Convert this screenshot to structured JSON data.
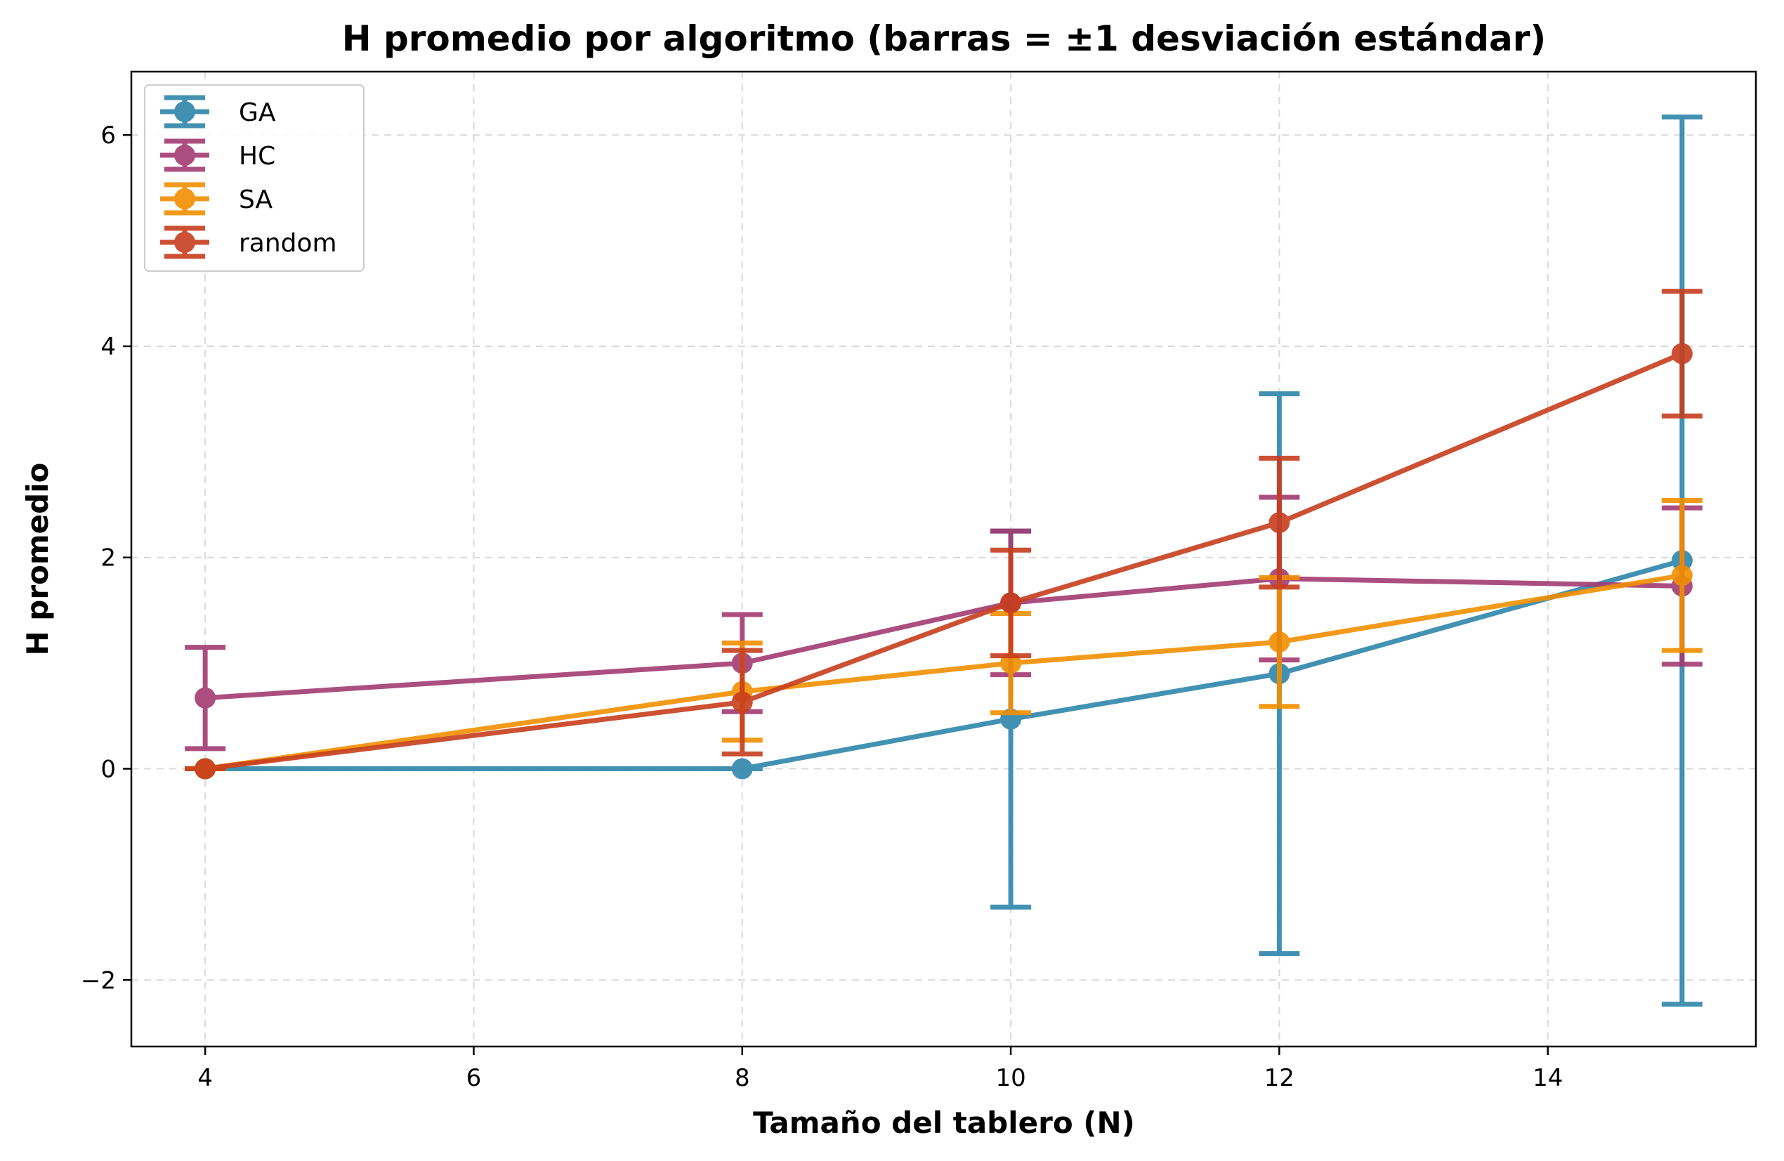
{
  "chart_data": {
    "type": "line",
    "title": "H promedio por algoritmo (barras = ±1 desviación estándar)",
    "xlabel": "Tamaño del tablero (N)",
    "ylabel": "H promedio",
    "xlim": [
      3.45,
      15.55
    ],
    "ylim": [
      -2.63,
      6.6
    ],
    "xticks": [
      4,
      6,
      8,
      10,
      12,
      14
    ],
    "yticks": [
      -2,
      0,
      2,
      4,
      6
    ],
    "xtick_labels": [
      "4",
      "6",
      "8",
      "10",
      "12",
      "14"
    ],
    "ytick_labels": [
      "−2",
      "0",
      "2",
      "4",
      "6"
    ],
    "grid": true,
    "legend_position": "top-left",
    "error_bars": "±1 standard deviation",
    "x": [
      4,
      8,
      10,
      12,
      15
    ],
    "series": [
      {
        "name": "GA",
        "color": "#2e86ab",
        "values": [
          0,
          0,
          0.47,
          0.9,
          1.97
        ],
        "errors": [
          0,
          0,
          1.78,
          2.65,
          4.2
        ]
      },
      {
        "name": "HC",
        "color": "#a23b72",
        "values": [
          0.67,
          1.0,
          1.57,
          1.8,
          1.73
        ],
        "errors": [
          0.48,
          0.46,
          0.68,
          0.77,
          0.74
        ]
      },
      {
        "name": "SA",
        "color": "#f18f01",
        "values": [
          0,
          0.73,
          1.0,
          1.2,
          1.83
        ],
        "errors": [
          0,
          0.46,
          0.47,
          0.61,
          0.71
        ]
      },
      {
        "name": "random",
        "color": "#c73e1d",
        "values": [
          0,
          0.63,
          1.57,
          2.33,
          3.93
        ],
        "errors": [
          0,
          0.49,
          0.5,
          0.61,
          0.59
        ]
      }
    ]
  }
}
